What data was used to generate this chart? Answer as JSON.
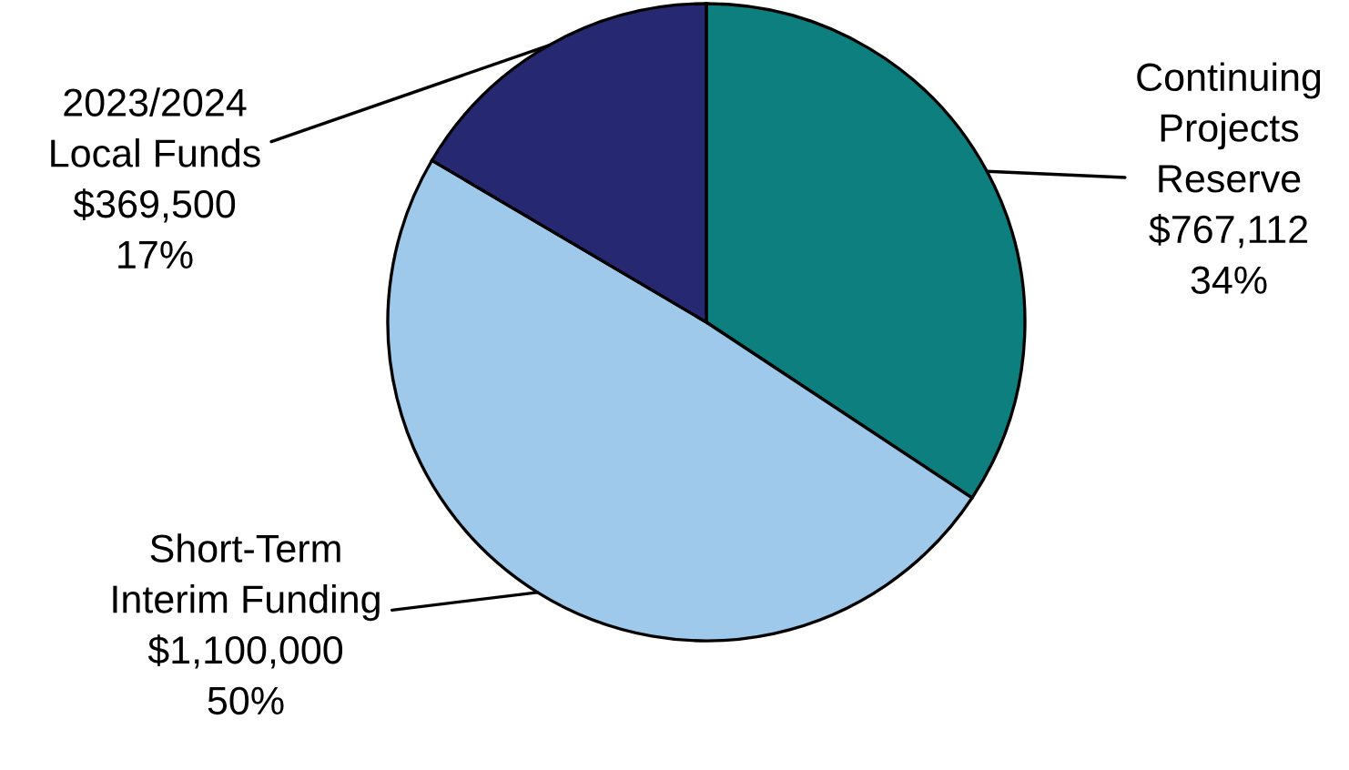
{
  "chart_data": {
    "type": "pie",
    "categories": [
      "Continuing\nProjects\nReserve",
      "Short-Term\nInterim Funding",
      "2023/2024\nLocal Funds"
    ],
    "values": [
      767112,
      1100000,
      369500
    ],
    "colors": [
      "#0e7f7f",
      "#9fc9ea",
      "#272872"
    ],
    "value_labels": [
      "$767,112\n34%",
      "$1,100,000\n50%",
      "$369,500\n17%"
    ]
  }
}
